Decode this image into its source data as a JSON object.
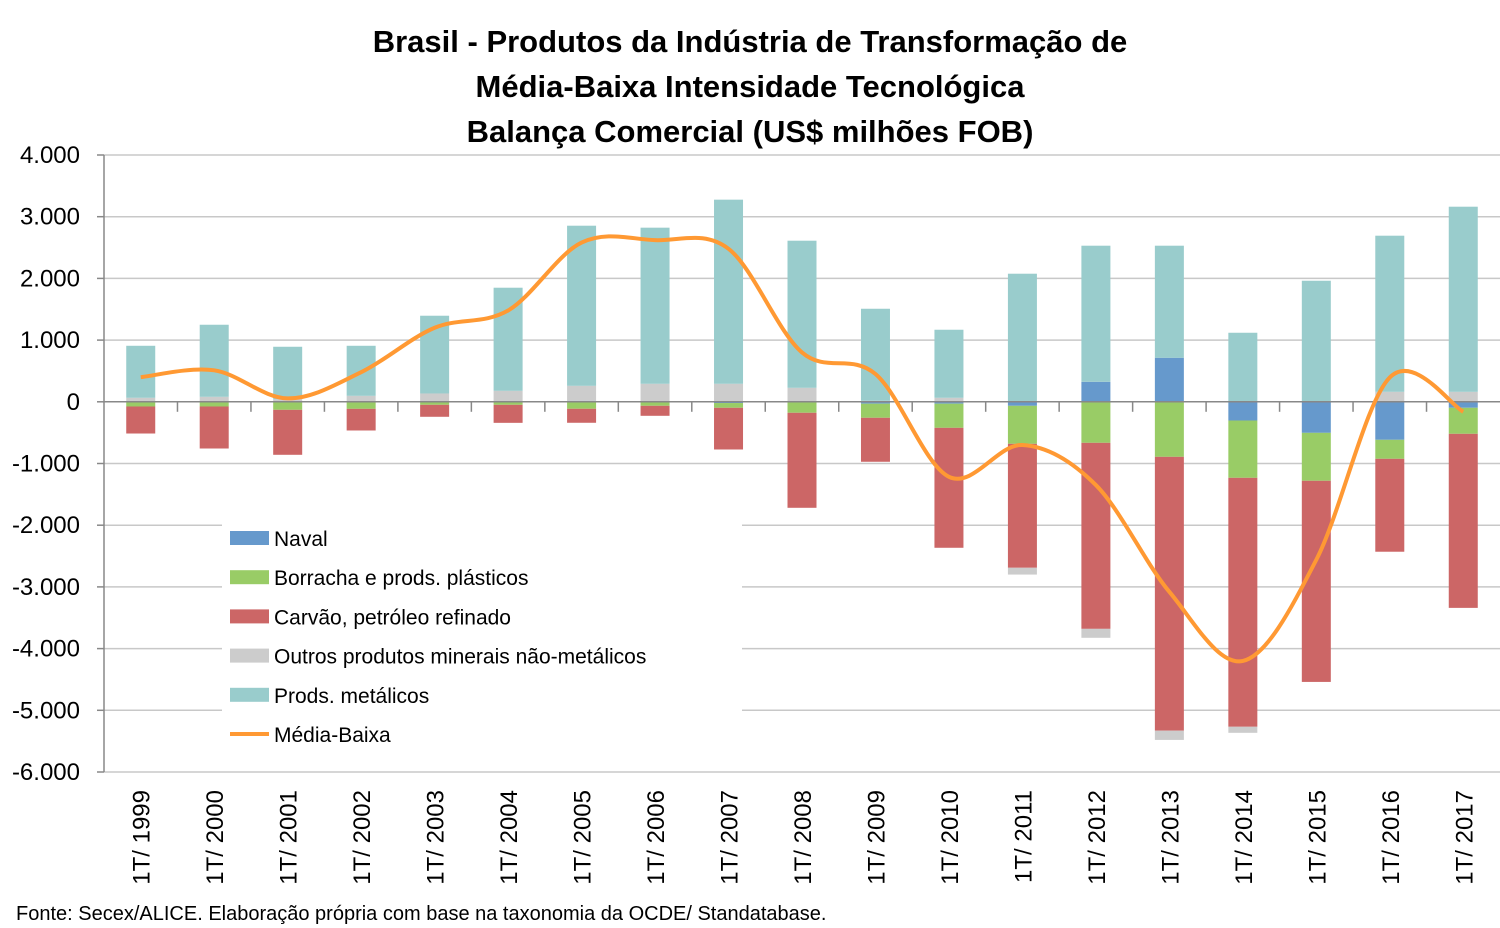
{
  "chart_data": {
    "type": "bar",
    "stacked": true,
    "title": [
      "Brasil - Produtos da Indústria de Transformação de",
      "Média-Baixa Intensidade Tecnológica",
      "Balança Comercial (US$ milhões FOB)"
    ],
    "xlabel": "",
    "ylabel": "",
    "ylim": [
      -6000,
      4000
    ],
    "yticks": [
      4000,
      3000,
      2000,
      1000,
      0,
      -1000,
      -2000,
      -3000,
      -4000,
      -5000,
      -6000
    ],
    "ytick_labels": [
      "4.000",
      "3.000",
      "2.000",
      "1.000",
      "0",
      "-1.000",
      "-2.000",
      "-3.000",
      "-4.000",
      "-5.000",
      "-6.000"
    ],
    "grid": true,
    "legend_position": "bottom-left",
    "categories": [
      "1T/ 1999",
      "1T/ 2000",
      "1T/ 2001",
      "1T/ 2002",
      "1T/ 2003",
      "1T/ 2004",
      "1T/ 2005",
      "1T/ 2006",
      "1T/ 2007",
      "1T/ 2008",
      "1T/ 2009",
      "1T/ 2010",
      "1T/ 2011",
      "1T/ 2012",
      "1T/ 2013",
      "1T/ 2014",
      "1T/ 2015",
      "1T/ 2016",
      "1T/ 2017"
    ],
    "series": [
      {
        "name": "Naval",
        "kind": "bar",
        "color": "#6699CC",
        "values": [
          0,
          0,
          0,
          0,
          0,
          0,
          16,
          0,
          -20,
          0,
          -30,
          -30,
          -65,
          324,
          714,
          -303,
          -503,
          -616,
          -97
        ]
      },
      {
        "name": "Borracha e prods. plásticos",
        "kind": "bar",
        "color": "#99CC66",
        "values": [
          -76,
          -76,
          -130,
          -114,
          -49,
          -49,
          -113,
          -65,
          -77,
          -178,
          -229,
          -392,
          -616,
          -665,
          -892,
          -929,
          -777,
          -308,
          -422
        ]
      },
      {
        "name": "Carvão, petróleo refinado",
        "kind": "bar",
        "color": "#CC6666",
        "values": [
          -438,
          -681,
          -729,
          -351,
          -194,
          -292,
          -227,
          -162,
          -676,
          -1540,
          -713,
          -1944,
          -2009,
          -3015,
          -4438,
          -4035,
          -3260,
          -1506,
          -2821
        ]
      },
      {
        "name": "Outros produtos minerais não-metálicos",
        "kind": "bar",
        "color": "#CCCCCC",
        "values": [
          65,
          81,
          43,
          97,
          135,
          178,
          243,
          292,
          292,
          227,
          16,
          65,
          -110,
          -145,
          -150,
          -98,
          0,
          162,
          162
        ]
      },
      {
        "name": "Prods. metálicos",
        "kind": "bar",
        "color": "#99CCCC",
        "values": [
          843,
          1168,
          849,
          811,
          1260,
          1671,
          2595,
          2530,
          2984,
          2384,
          1492,
          1103,
          2076,
          2206,
          1816,
          1119,
          1962,
          2530,
          3000
        ]
      },
      {
        "name": "Média-Baixa",
        "kind": "line",
        "color": "#FF9933",
        "values": [
          400,
          510,
          55,
          480,
          1200,
          1480,
          2580,
          2620,
          2480,
          800,
          450,
          -1215,
          -700,
          -1350,
          -3080,
          -4200,
          -2560,
          395,
          -160
        ]
      }
    ]
  },
  "source": "Fonte: Secex/ALICE. Elaboração própria com base na taxonomia da OCDE/ Standatabase."
}
